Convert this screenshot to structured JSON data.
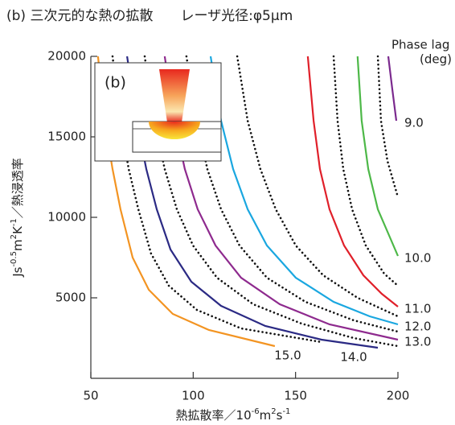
{
  "chart_data": {
    "type": "line",
    "title": "(b) 三次元的な熱の拡散　　レーザ光径:φ5μm",
    "x_label": [
      {
        "text": "熱拡散率／10"
      },
      {
        "text": "-6",
        "sup": true
      },
      {
        "text": "m"
      },
      {
        "text": "2",
        "sup": true
      },
      {
        "text": "s"
      },
      {
        "text": "-1",
        "sup": true
      }
    ],
    "y_label": [
      {
        "text": "Js"
      },
      {
        "text": "-0.5",
        "sup": true
      },
      {
        "text": "m"
      },
      {
        "text": "2",
        "sup": true
      },
      {
        "text": "K"
      },
      {
        "text": "-1",
        "sup": true
      },
      {
        "text": "／熱浸透率"
      }
    ],
    "legend_title": [
      "Phase lag",
      "(deg)"
    ],
    "inset_label": "(b)",
    "xlim": [
      50,
      200
    ],
    "xticks": [
      50,
      100,
      150,
      200
    ],
    "ylim": [
      0,
      20000
    ],
    "yticks": [
      5000,
      10000,
      15000,
      20000
    ],
    "series": [
      {
        "name": "15.0",
        "color": "#f39422",
        "style": "solid",
        "x": [
          53.5,
          56.7,
          60.6,
          64.5,
          70.4,
          78.3,
          90.0,
          107.7,
          139.9
        ],
        "values": [
          20000,
          16000,
          13000,
          10500,
          7500,
          5500,
          4000,
          3000,
          2000
        ]
      },
      {
        "color": "#111111",
        "style": "dotted",
        "x": [
          60.6,
          64.5,
          68.5,
          73.2,
          79.4,
          88.1,
          101.8,
          123.4,
          162.7
        ],
        "values": [
          20000,
          16000,
          13000,
          10500,
          7750,
          5750,
          4250,
          3100,
          2250
        ]
      },
      {
        "name": "14.0",
        "color": "#2b2a84",
        "style": "solid",
        "x": [
          67.7,
          72.4,
          77.1,
          82.2,
          88.9,
          99.1,
          113.6,
          135.2,
          162.7,
          190.2
        ],
        "values": [
          20000,
          16000,
          13000,
          10500,
          8000,
          6000,
          4500,
          3250,
          2400,
          1900
        ]
      },
      {
        "color": "#111111",
        "style": "dotted",
        "x": [
          76.3,
          81.0,
          86.1,
          92.0,
          99.9,
          111.6,
          129.3,
          152.9,
          178.4,
          200
        ],
        "values": [
          20000,
          16000,
          13000,
          10500,
          8250,
          6250,
          4600,
          3400,
          2500,
          2000
        ]
      },
      {
        "name": "13.0",
        "color": "#8e2a8e",
        "style": "solid",
        "x": [
          86.1,
          90.8,
          95.9,
          102.2,
          110.9,
          123.4,
          142.3,
          166.6,
          200
        ],
        "values": [
          20000,
          16000,
          13000,
          10500,
          8250,
          6250,
          4600,
          3350,
          2400
        ]
      },
      {
        "color": "#111111",
        "style": "dotted",
        "x": [
          96.7,
          101.8,
          106.9,
          113.6,
          122.6,
          136.0,
          154.8,
          178.4,
          200
        ],
        "values": [
          20000,
          16000,
          13000,
          10500,
          8250,
          6250,
          4750,
          3600,
          2900
        ]
      },
      {
        "name": "12.0",
        "color": "#1aa7e0",
        "style": "solid",
        "x": [
          108.5,
          113.6,
          119.5,
          126.6,
          136.0,
          150.1,
          168.6,
          186.2,
          200
        ],
        "values": [
          20000,
          16000,
          13000,
          10500,
          8250,
          6250,
          4750,
          3850,
          3350
        ]
      },
      {
        "color": "#111111",
        "style": "dotted",
        "x": [
          121.5,
          126.6,
          132.8,
          140.3,
          150.1,
          163.5,
          180.3,
          200
        ],
        "values": [
          20000,
          16000,
          13000,
          10500,
          8250,
          6400,
          5000,
          3850
        ]
      },
      {
        "name": "11.0",
        "color": "#e0202a",
        "style": "solid",
        "x": [
          156.0,
          158.8,
          161.9,
          166.6,
          173.7,
          183.1,
          192.1,
          200
        ],
        "values": [
          20000,
          16000,
          13000,
          10500,
          8250,
          6400,
          5250,
          4450
        ]
      },
      {
        "color": "#111111",
        "style": "dotted",
        "x": [
          168.6,
          170.5,
          173.3,
          177.6,
          184.3,
          193.3,
          200
        ],
        "values": [
          20000,
          16000,
          13000,
          10500,
          8250,
          6500,
          5750
        ]
      },
      {
        "name": "10.0",
        "color": "#4db848",
        "style": "solid",
        "x": [
          180.3,
          182.3,
          185.5,
          190.2,
          196.1,
          200
        ],
        "values": [
          20000,
          16000,
          13000,
          10500,
          8750,
          7600
        ]
      },
      {
        "color": "#111111",
        "style": "dotted",
        "x": [
          190.2,
          191.7,
          194.9,
          200
        ],
        "values": [
          20000,
          16000,
          13500,
          11250
        ]
      },
      {
        "name": "9.0",
        "color": "#7b2a8e",
        "style": "solid",
        "x": [
          195.3,
          197.2,
          199.2
        ],
        "values": [
          20000,
          18000,
          16000
        ]
      }
    ]
  }
}
